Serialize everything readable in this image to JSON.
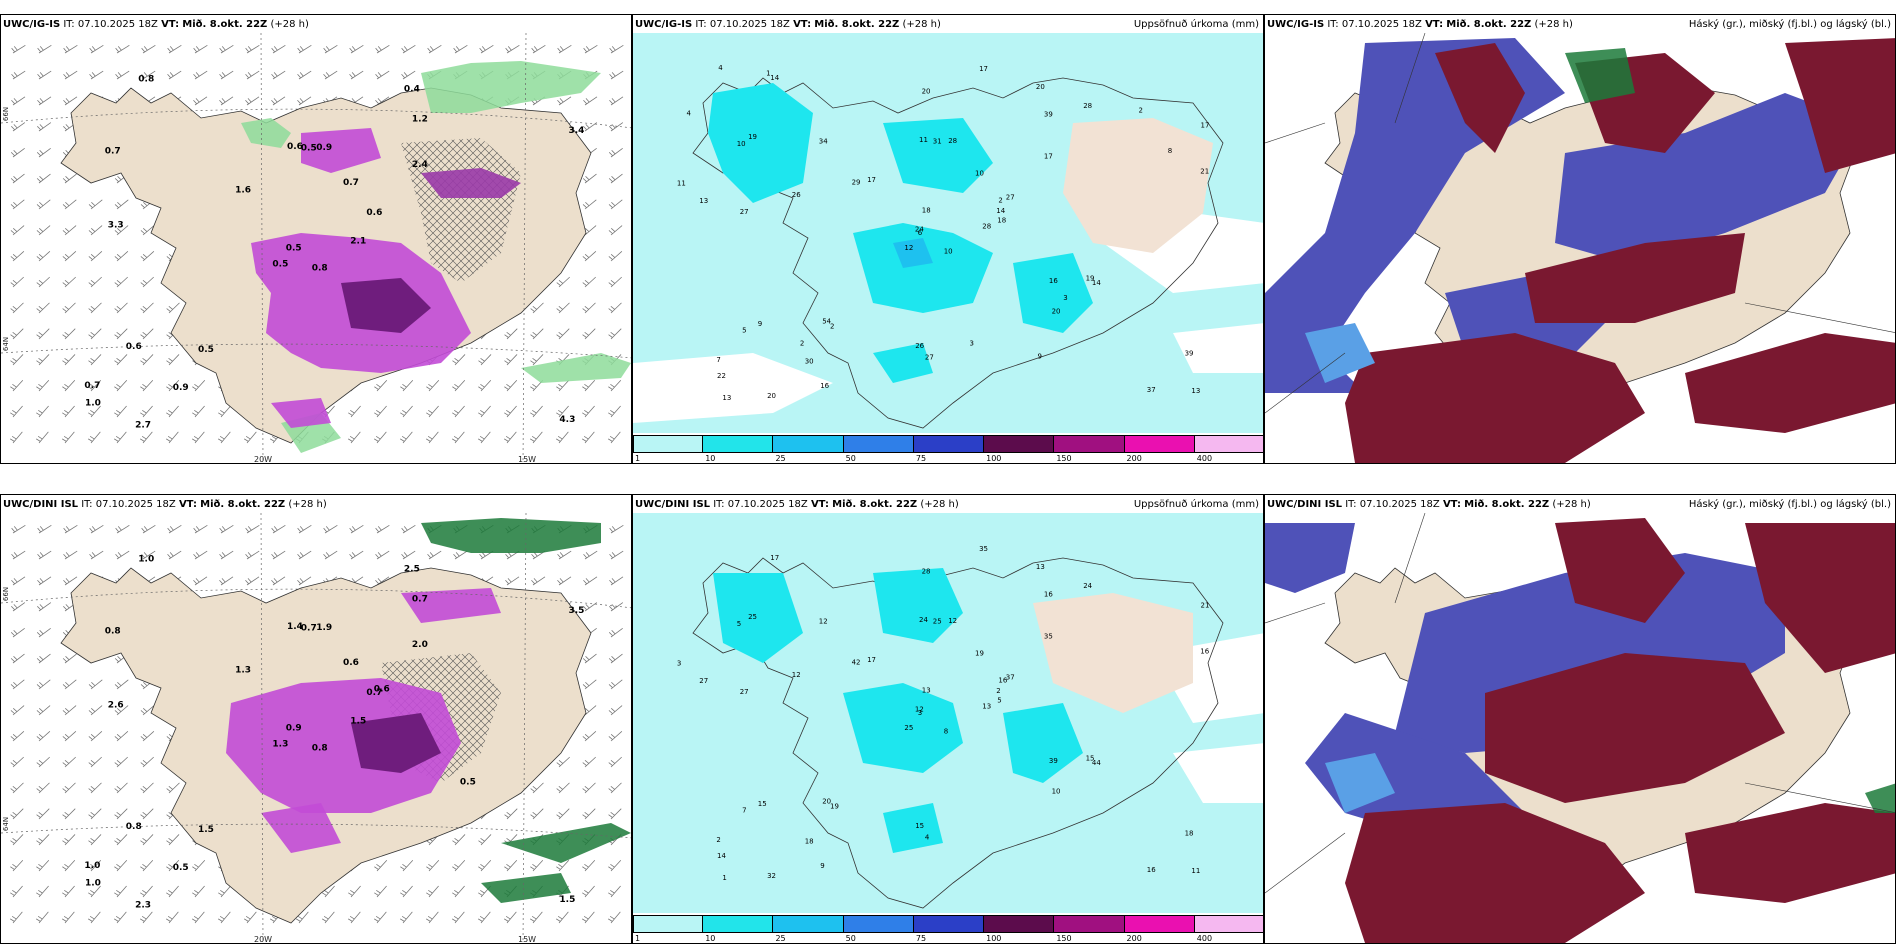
{
  "top_row": {
    "model": "UWC/IG-IS",
    "it_label": "IT:",
    "it_value": "07.10.2025 18Z",
    "vt_label": "VT:",
    "vt_value": "Mið. 8.okt. 22Z",
    "lead": "(+28 h)"
  },
  "bottom_row": {
    "model": "UWC/DINI ISL",
    "it_label": "IT:",
    "it_value": "07.10.2025 18Z",
    "vt_label": "VT:",
    "vt_value": "Mið. 8.okt. 22Z",
    "lead": "(+28 h)"
  },
  "precip_field_title": "Uppsöfnuð úrkoma (mm)",
  "cloud_field_title": "Háský (gr.), miðský (fj.bl.) og lágský (bl.)",
  "longitude_labels": [
    "20W",
    "15W"
  ],
  "latitude_labels": [
    "66N",
    "64N"
  ],
  "precip_colorbar": {
    "ticks": [
      "1",
      "10",
      "25",
      "50",
      "75",
      "100",
      "150",
      "200",
      "400"
    ],
    "colors": [
      "#b9f5f5",
      "#22e4ea",
      "#1ec1ef",
      "#2f7fe8",
      "#2b3fc7",
      "#5c0c4c",
      "#a01080",
      "#ea10b0",
      "#f5b8f0"
    ]
  },
  "colors": {
    "land": "#ecdfcc",
    "rain_light": "#a6f0f0",
    "rain_cyan": "#1ee6ee",
    "purple": "#c24bd6",
    "dark_purple": "#6a1a78",
    "green": "#8edc9a",
    "dark_green": "#1c7a3a",
    "cloud_blue": "#4f52b8",
    "cloud_red": "#7a1830",
    "cloud_light_blue": "#5aa0e6"
  },
  "panels": {
    "top_left": {
      "values": [
        "0.8",
        "0.7",
        "0.5",
        "0.7",
        "0.6",
        "0.5",
        "0.4",
        "0.9",
        "1.2",
        "2.1",
        "0.8",
        "4.3",
        "3.3",
        "3.4",
        "0.5",
        "2.4",
        "2.7",
        "0.6",
        "0.7",
        "0.6",
        "1.6",
        "1.0",
        "0.9",
        "0.5"
      ]
    },
    "top_mid": {
      "values": [
        "10",
        "10",
        "6",
        "7",
        "2",
        "2",
        "20",
        "28",
        "39",
        "28",
        "14",
        "13",
        "27",
        "17",
        "12",
        "17",
        "20",
        "11",
        "10",
        "9",
        "17",
        "22",
        "30",
        "31",
        "27",
        "14",
        "19",
        "20",
        "13",
        "16",
        "21",
        "24",
        "26",
        "18",
        "34",
        "28",
        "54",
        "37",
        "39",
        "19",
        "17",
        "29",
        "26",
        "20",
        "16",
        "11",
        "14",
        "13",
        "27",
        "18",
        "5",
        "8",
        "4",
        "3",
        "9",
        "2",
        "1",
        "4",
        "3",
        "2"
      ]
    },
    "bottom_left": {
      "values": [
        "0.8",
        "0.8",
        "0.9",
        "1.0",
        "0.7",
        "1.5",
        "2.5",
        "1.9",
        "0.7",
        "1.5",
        "1.0",
        "1.5",
        "2.6",
        "3.5",
        "1.3",
        "2.0",
        "2.3",
        "1.4",
        "0.6",
        "0.8",
        "1.3",
        "1.0",
        "0.5",
        "0.7",
        "0.6",
        "0.5"
      ]
    },
    "bottom_mid": {
      "values": [
        "8",
        "5",
        "3",
        "2",
        "16",
        "19",
        "13",
        "12",
        "16",
        "13",
        "17",
        "11",
        "27",
        "21",
        "25",
        "35",
        "32",
        "24",
        "19",
        "15",
        "17",
        "14",
        "18",
        "25",
        "37",
        "44",
        "25",
        "28",
        "27",
        "39",
        "16",
        "12",
        "15",
        "13",
        "12",
        "24",
        "20",
        "16",
        "18",
        "15",
        "35",
        "42",
        "12",
        "10",
        "9",
        "3",
        "2",
        "1",
        "4",
        "5",
        "7"
      ]
    }
  }
}
